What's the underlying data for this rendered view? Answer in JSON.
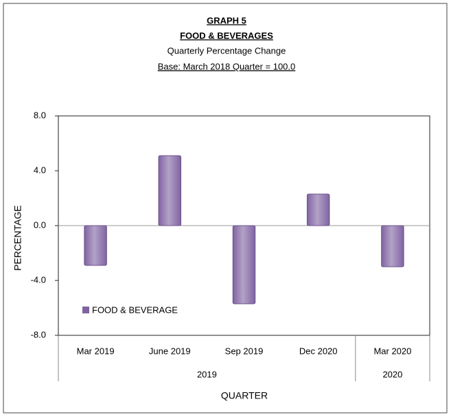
{
  "chart_data": {
    "type": "bar",
    "title": [
      "GRAPH 5",
      "FOOD & BEVERAGES"
    ],
    "subtitle": [
      "Quarterly Percentage Change",
      "Base: March 2018 Quarter = 100.0"
    ],
    "groups": [
      {
        "label": "2019",
        "categories": [
          "Mar 2019",
          "June 2019",
          "Sep 2019",
          "Dec 2020"
        ]
      },
      {
        "label": "2020",
        "categories": [
          "Mar 2020"
        ]
      }
    ],
    "series": [
      {
        "name": "FOOD & BEVERAGE",
        "color": "#8064a2",
        "values": [
          -2.9,
          5.1,
          -5.7,
          2.3,
          -3.0
        ]
      }
    ],
    "ylim": [
      -8,
      8
    ],
    "yticks": [
      {
        "value": 8,
        "label": "8.0"
      },
      {
        "value": 4,
        "label": "4.0"
      },
      {
        "value": 0,
        "label": "0.0"
      },
      {
        "value": -4,
        "label": "-4.0"
      },
      {
        "value": -8,
        "label": "-8.0"
      }
    ],
    "y_label": "PERCENTAGE",
    "x_label": "QUARTER",
    "legend": "lower left"
  }
}
